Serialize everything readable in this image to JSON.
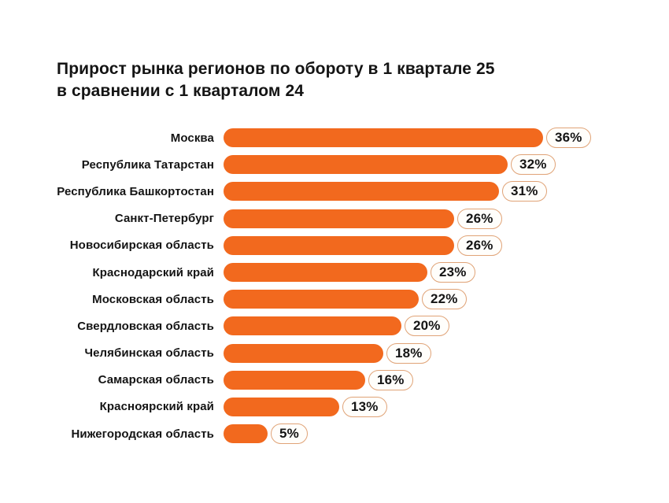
{
  "header": {
    "title": "Прирост рынка регионов по обороту в 1 квартале 25\nв сравнении с 1 кварталом 24"
  },
  "chart_data": {
    "type": "bar",
    "orientation": "horizontal",
    "title": "Прирост рынка регионов по обороту в 1 квартале 25 в сравнении с 1 кварталом 24",
    "categories": [
      "Москва",
      "Республика Татарстан",
      "Республика Башкортостан",
      "Санкт-Петербург",
      "Новосибирская область",
      "Краснодарский край",
      "Московская область",
      "Свердловская область",
      "Челябинская область",
      "Самарская область",
      "Красноярский край",
      "Нижегородская область"
    ],
    "values": [
      36,
      32,
      31,
      26,
      26,
      23,
      22,
      20,
      18,
      16,
      13,
      5
    ],
    "value_labels": [
      "36%",
      "32%",
      "31%",
      "26%",
      "26%",
      "23%",
      "22%",
      "20%",
      "18%",
      "16%",
      "13%",
      "5%"
    ],
    "value_suffix": "%",
    "xlim": [
      0,
      36
    ],
    "grid": false,
    "legend": false,
    "axis_ticks": false,
    "colors": {
      "bar": "#F2691E",
      "badge_border": "#E0A377",
      "badge_background": "#FFFEFB",
      "text": "#141414",
      "background": "#FFFFFF"
    }
  }
}
